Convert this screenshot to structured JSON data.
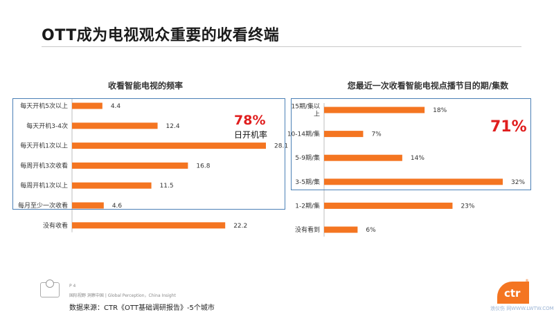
{
  "page": {
    "title": "OTT成为电视观众重要的收看终端",
    "page_number": "P 4",
    "tagline": "国际视野  洞察中国 | Global Perception，China Insight",
    "source": "数据来源：CTR《OTT基础调研报告》-5个城市",
    "logo_text": "ctr",
    "logo_mark": "®",
    "watermark": "浪仪伤 网WWW.LWTW.COM"
  },
  "highlights": {
    "left_pct": "78%",
    "left_caption": "日开机率",
    "right_pct": "71%"
  },
  "colors": {
    "bar": "#f47521",
    "highlight_box": "#4a7fb5",
    "highlight_text": "#e01e1e"
  },
  "chart_data": [
    {
      "type": "bar",
      "orientation": "horizontal",
      "title": "收看智能电视的频率",
      "categories": [
        "每天开机5次以上",
        "每天开机3-4次",
        "每天开机1次以上",
        "每周开机3次收看",
        "每周开机1次以上",
        "每月至少一次收看",
        "没有收看"
      ],
      "values": [
        4.4,
        12.4,
        28.1,
        16.8,
        11.5,
        4.6,
        22.2
      ],
      "value_labels": [
        "4.4",
        "12.4",
        "28.1",
        "16.8",
        "11.5",
        "4.6",
        "22.2"
      ]
    },
    {
      "type": "bar",
      "orientation": "horizontal",
      "title": "您最近一次收看智能电视点播节目的期/集数",
      "categories": [
        [
          "15期/集以",
          "上"
        ],
        [
          "10-14期/集"
        ],
        [
          "5-9期/集"
        ],
        [
          "3-5期/集"
        ],
        [
          "1-2期/集"
        ],
        [
          "没有看到"
        ]
      ],
      "values": [
        18,
        7,
        14,
        32,
        23,
        6
      ],
      "value_labels": [
        "18%",
        "7%",
        "14%",
        "32%",
        "23%",
        "6%"
      ]
    }
  ]
}
